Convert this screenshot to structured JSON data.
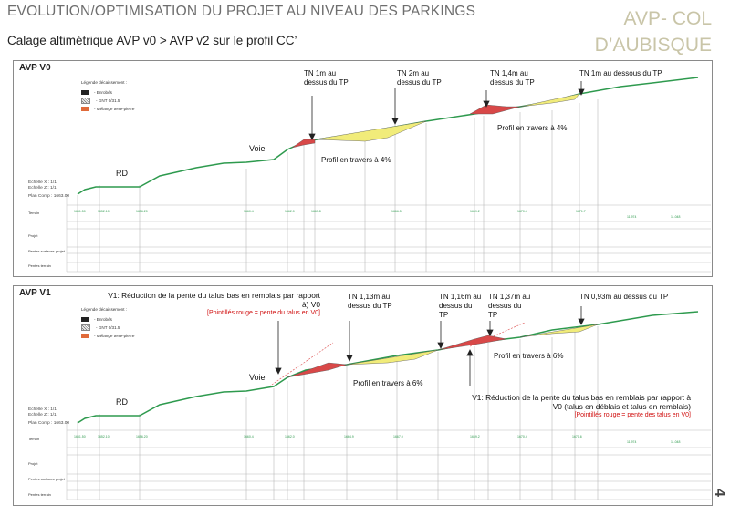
{
  "header": {
    "title": "EVOLUTION/OPTIMISATION DU PROJET AU NIVEAU DES PARKINGS",
    "subtitle": "Calage altimétrique AVP v0 > AVP v2 sur le profil CC’",
    "brand_line1": "AVP- COL",
    "brand_line2": "D’AUBISQUE"
  },
  "page_number": "4",
  "colors": {
    "terrain": "#2e9a4e",
    "embankment": "#f1ec7a",
    "cut": "#d84848",
    "frame": "#8a8a8a"
  },
  "panels": [
    {
      "title": "AVP V0",
      "legend": {
        "heading": "Légende décaissement :",
        "items": [
          "- Enrobés",
          "- GNT 0/31.5",
          "- Mélange terre-pierre"
        ]
      },
      "scale": [
        "Echelle X : 1/1",
        "Echelle Z : 1/1"
      ],
      "plan_comp": "Plan Comp : 1663.00",
      "bands": [
        "Terrain",
        "Projet",
        "Pentes surfaces projet",
        "Pentes terrain"
      ],
      "labels": {
        "rd": "RD",
        "voie": "Voie",
        "profil1": "Profil en travers à 4%",
        "profil2": "Profil en travers à 4%"
      },
      "tn": [
        "TN 1m au dessus du TP",
        "TN 2m au dessus du TP",
        "TN 1,4m au dessus du TP",
        "TN 1m au dessous du TP"
      ]
    },
    {
      "title": "AVP V1",
      "legend": {
        "heading": "Légende décaissement :",
        "items": [
          "- Enrobés",
          "- GNT 0/31.5",
          "- Mélange terre-pierre"
        ]
      },
      "scale": [
        "Echelle X : 1/1",
        "Echelle Z : 1/1"
      ],
      "plan_comp": "Plan Comp : 1663.00",
      "bands": [
        "Terrain",
        "Projet",
        "Pentes surfaces projet",
        "Pentes terrain"
      ],
      "labels": {
        "rd": "RD",
        "voie": "Voie",
        "profil1": "Profil en travers à 6%",
        "profil2": "Profil en travers à 6%"
      },
      "tn": [
        "TN 1,13m au dessus du TP",
        "TN 1,16m au dessus du TP",
        "TN 1,37m au dessus du TP",
        "TN 0,93m au dessus du TP"
      ],
      "note_top": {
        "text": "V1: Réduction de la pente du talus bas en remblais par rapport à) V0",
        "red": "[Pointillés rouge = pente du talus en V0]"
      },
      "note_right": {
        "text": "V1: Réduction de la pente du talus bas en remblais par rapport à V0 (talus en déblais et talus en remblais)",
        "red": "[Pointillés rouge = pente des talus en V0]"
      }
    }
  ]
}
